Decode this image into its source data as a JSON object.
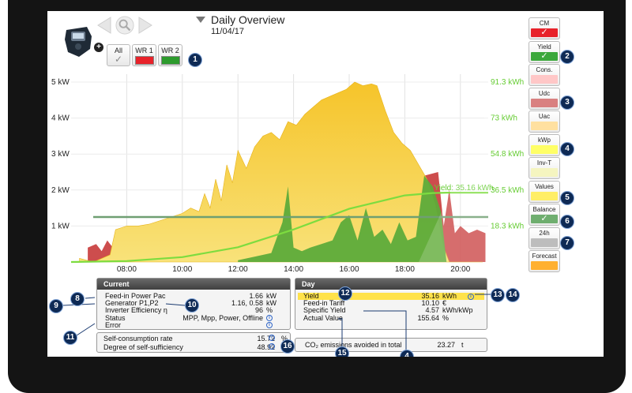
{
  "header": {
    "title": "Daily Overview",
    "date": "11/04/17"
  },
  "inverters": [
    {
      "label": "All",
      "color": ""
    },
    {
      "label": "WR 1",
      "color": "#e8222a"
    },
    {
      "label": "WR 2",
      "color": "#2d9b2d"
    }
  ],
  "chart_data": {
    "type": "area",
    "x_ticks": [
      "08:00",
      "10:00",
      "12:00",
      "14:00",
      "16:00",
      "18:00",
      "20:00"
    ],
    "y_ticks_left": [
      "5 kW",
      "4 kW",
      "3 kW",
      "2 kW",
      "1 kW"
    ],
    "y_ticks_right": [
      "91.3 kWh",
      "73 kWh",
      "54.8 kWh",
      "36.5 kWh",
      "18.3 kWh"
    ],
    "ylim_kw": [
      0,
      5
    ],
    "ylim_kwh": [
      0,
      91.3
    ],
    "yield_label": "Yield: 35.16 kWh",
    "balance_kw": 1.25,
    "series": [
      {
        "name": "Yield",
        "color": "#f4cc2e",
        "x_hours": [
          6.3,
          6.8,
          7.4,
          7.6,
          8.0,
          8.4,
          8.8,
          9.2,
          9.6,
          10.0,
          10.3,
          10.6,
          10.8,
          11.0,
          11.2,
          11.4,
          11.6,
          11.8,
          12.0,
          12.3,
          12.6,
          12.9,
          13.2,
          13.5,
          13.8,
          14.1,
          14.4,
          14.7,
          15.0,
          15.3,
          15.6,
          15.9,
          16.2,
          16.5,
          16.8,
          17.0,
          17.3,
          17.6,
          17.9,
          18.2,
          18.5,
          18.8,
          19.1,
          19.4,
          19.6,
          19.9,
          20.2,
          20.5,
          20.8
        ],
        "y_kw": [
          0.1,
          0.0,
          0.2,
          0.9,
          1.0,
          1.0,
          1.05,
          1.15,
          1.25,
          1.35,
          1.5,
          1.4,
          1.9,
          1.5,
          2.3,
          1.7,
          2.7,
          2.2,
          3.1,
          2.6,
          3.2,
          3.5,
          3.6,
          3.4,
          3.9,
          3.8,
          4.1,
          4.3,
          4.5,
          4.6,
          4.7,
          4.8,
          5.0,
          4.9,
          4.95,
          4.9,
          4.2,
          3.6,
          3.3,
          3.1,
          2.7,
          2.3,
          1.6,
          0.4,
          0.0,
          0.0,
          0.0,
          0.0,
          0.0
        ]
      },
      {
        "name": "Consumption",
        "color": "#c83a3a",
        "x_hours": [
          6.6,
          6.9,
          7.1,
          7.3,
          7.5,
          7.8,
          8.1,
          8.4,
          19.2,
          19.4,
          19.6,
          19.8,
          20.0,
          20.3,
          20.6,
          20.9
        ],
        "y_kw": [
          0.4,
          0.5,
          0.3,
          0.6,
          0.4,
          0.5,
          0.3,
          0.3,
          2.5,
          1.0,
          2.0,
          0.8,
          1.0,
          0.8,
          0.9,
          0.8
        ]
      },
      {
        "name": "Self-consumption",
        "color": "#5dab3a",
        "x_hours": [
          12.0,
          12.6,
          13.2,
          13.6,
          13.8,
          14.0,
          14.3,
          14.6,
          15.0,
          15.4,
          15.7,
          16.0,
          16.3,
          16.6,
          16.9,
          17.2,
          17.5,
          17.8,
          18.1,
          18.4,
          18.7,
          19.0,
          19.3,
          19.5
        ],
        "y_kw": [
          0.05,
          0.15,
          0.25,
          1.1,
          2.1,
          0.4,
          0.3,
          0.4,
          0.5,
          0.6,
          1.1,
          1.3,
          0.6,
          1.5,
          0.7,
          0.9,
          0.5,
          1.1,
          0.6,
          0.7,
          2.4,
          2.1,
          1.4,
          0.0
        ]
      },
      {
        "name": "Yield (cumulative)",
        "color": "#7ddc3f",
        "x_hours": [
          6.0,
          8.0,
          10.0,
          12.0,
          14.0,
          16.0,
          18.0,
          19.0,
          19.5,
          21.0
        ],
        "y_kwh": [
          0.0,
          0.5,
          2.5,
          7.5,
          16.5,
          27.0,
          33.8,
          35.0,
          35.16,
          35.16
        ]
      }
    ]
  },
  "legend_buttons": [
    {
      "label": "CM",
      "color": "#e8222a",
      "checked": true
    },
    {
      "label": "Yield",
      "color": "#3ca83c",
      "checked": true
    },
    {
      "label": "Cons.",
      "color": "#ffc7c7",
      "checked": false
    },
    {
      "label": "Udc",
      "color": "#d98080",
      "checked": false
    },
    {
      "label": "Uac",
      "color": "#ffe0a0",
      "checked": false
    },
    {
      "label": "kWp",
      "color": "#ffff66",
      "checked": false
    },
    {
      "label": "Inv-T",
      "color": "#f5f5c0",
      "checked": false
    },
    {
      "label": "Values",
      "color": "#ffee66",
      "checked": false
    },
    {
      "label": "Balance",
      "color": "#6fae6f",
      "checked": true
    },
    {
      "label": "24h",
      "color": "#bdbdbd",
      "checked": false
    },
    {
      "label": "Forecast",
      "color": "#ffb030",
      "checked": false
    }
  ],
  "current": {
    "header": "Current",
    "rows": [
      {
        "label": "Feed-in Power Pac",
        "value": "1.66",
        "unit": "kW"
      },
      {
        "label": "Generator P1,P2",
        "value": "1.16, 0.58",
        "unit": "kW"
      },
      {
        "label": "Inverter Efficiency η",
        "value": "96",
        "unit": "%"
      },
      {
        "label": "Status",
        "value": "MPP, Mpp, Power, Offline",
        "unit": ""
      },
      {
        "label": "Error",
        "value": "",
        "unit": ""
      }
    ],
    "self_consumption_label": "Self-consumption rate",
    "self_consumption_value": "15.72",
    "self_sufficiency_label": "Degree of self-sufficiency",
    "self_sufficiency_value": "48.92",
    "percent_unit": "%"
  },
  "day": {
    "header": "Day",
    "rows": [
      {
        "label": "Yield",
        "value": "35.16",
        "unit": "kWh"
      },
      {
        "label": "Feed-in Tariff",
        "value": "10.10",
        "unit": "€"
      },
      {
        "label": "Specific Yield",
        "value": "4.57",
        "unit": "kWh/kWp"
      },
      {
        "label": "Actual Value",
        "value": "155.64",
        "unit": "%"
      }
    ],
    "co2_label": "CO₂ emissions avoided in total",
    "co2_value": "23.27",
    "co2_unit": "t"
  },
  "markers": [
    "1",
    "2",
    "3",
    "4",
    "5",
    "6",
    "7",
    "8",
    "9",
    "10",
    "11",
    "12",
    "13",
    "14",
    "15",
    "16",
    "4"
  ],
  "icons": {
    "info": "i",
    "check": "✓",
    "plus": "+"
  }
}
